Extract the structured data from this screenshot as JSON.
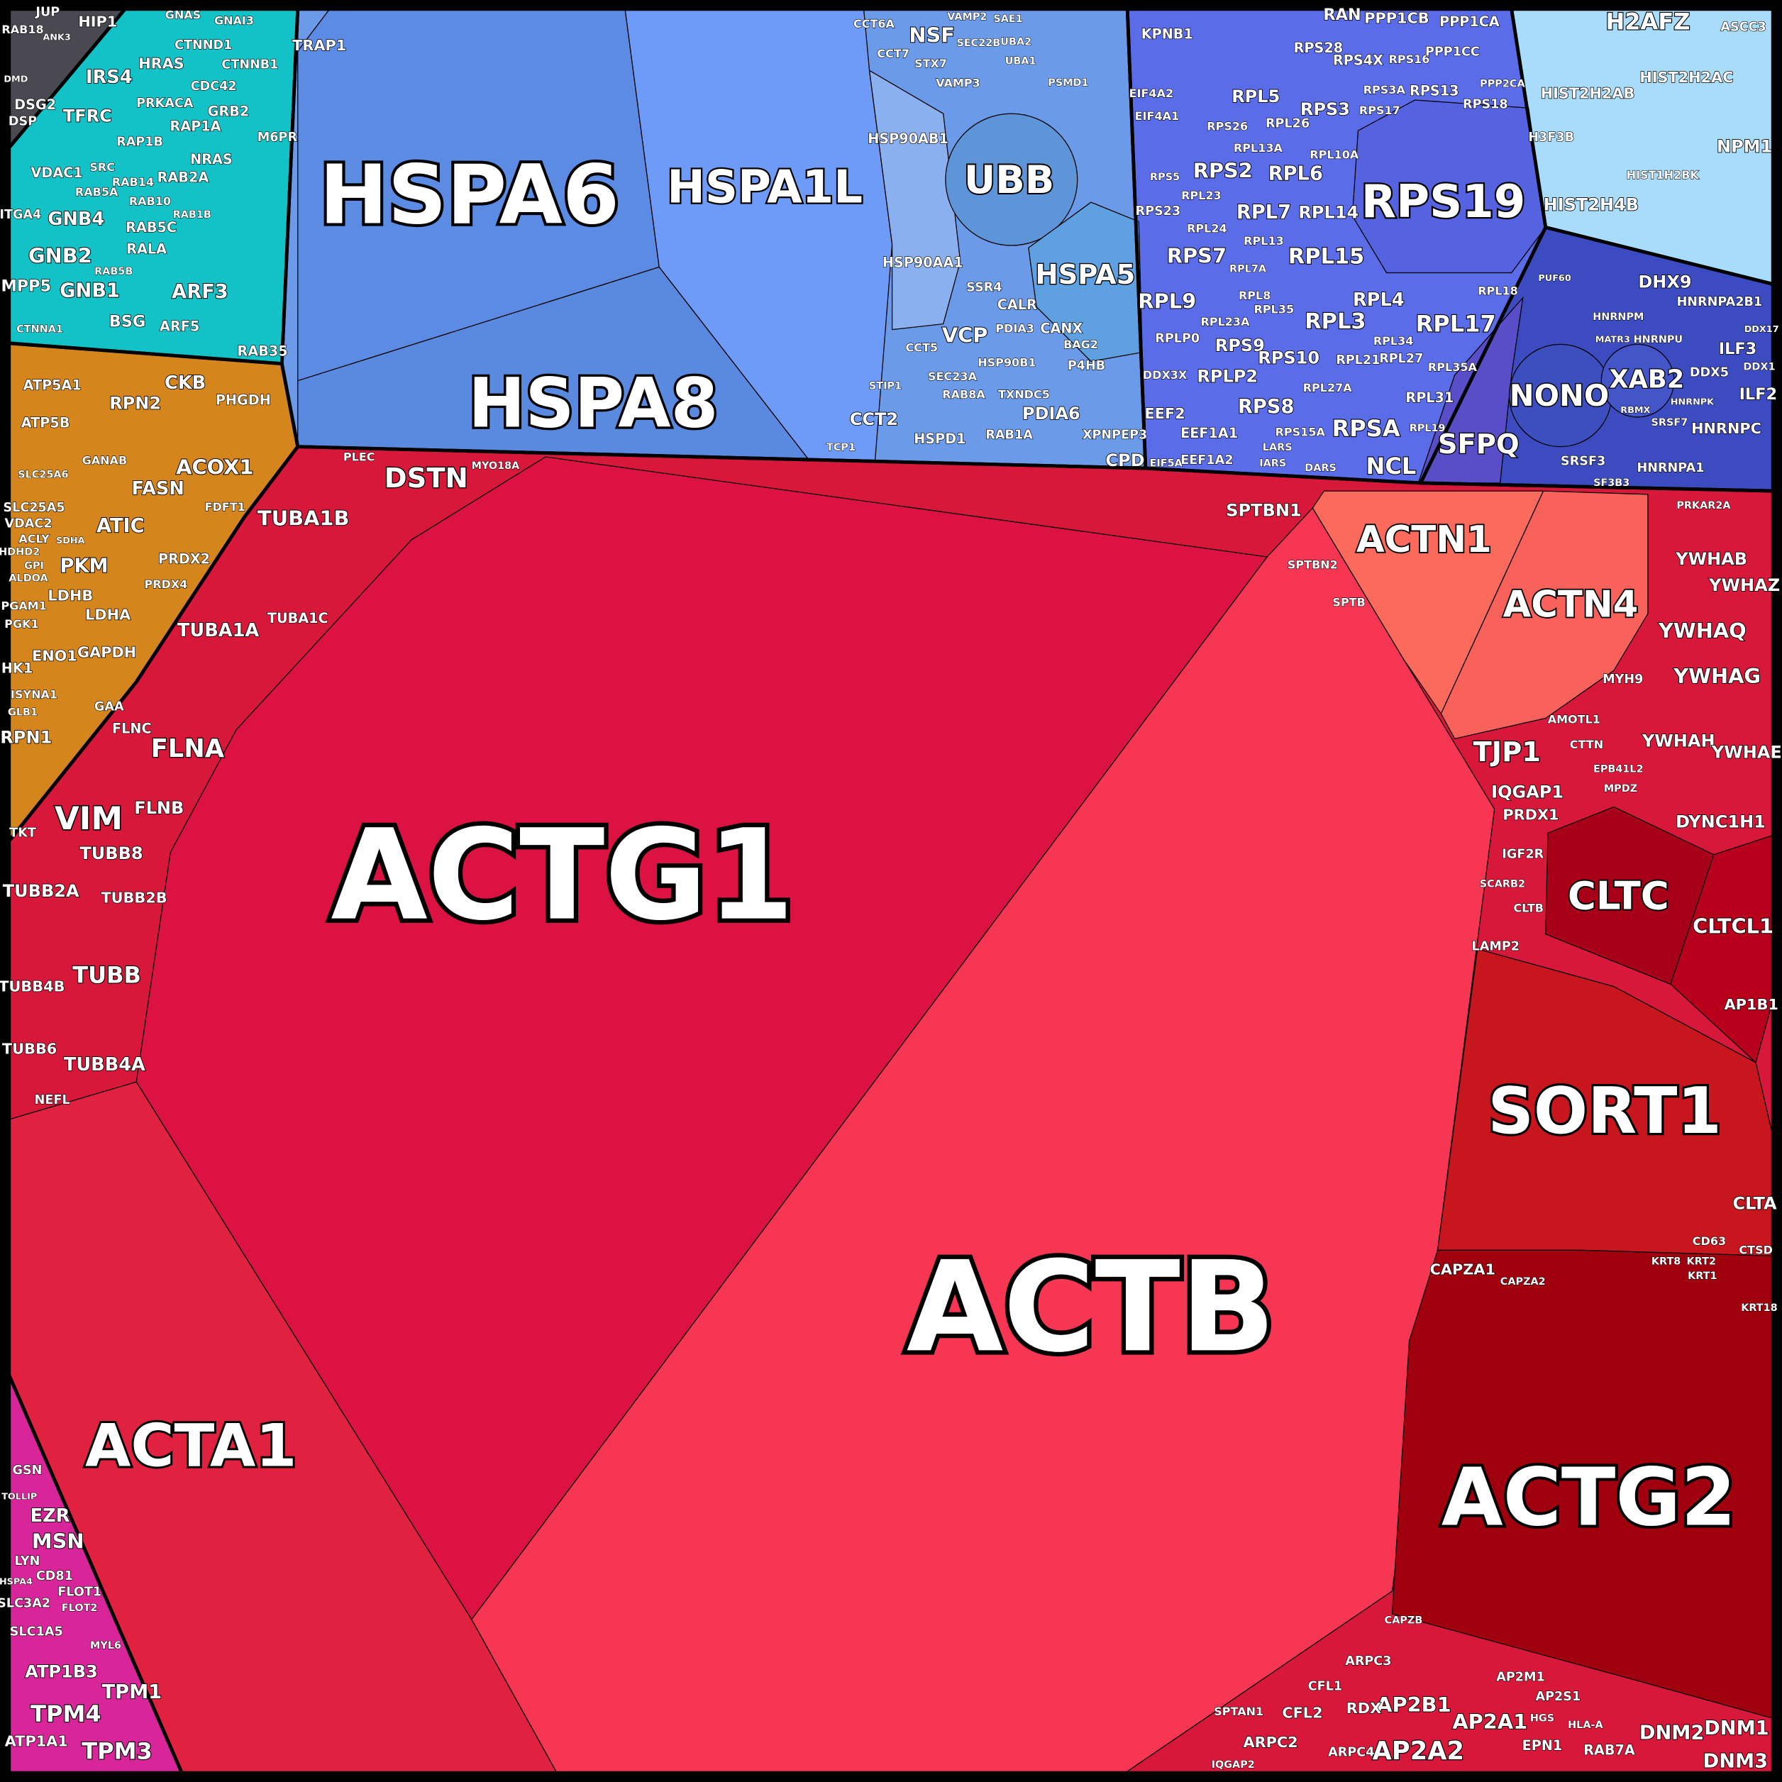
{
  "chart_data": {
    "type": "voronoi-treemap",
    "title": "",
    "groups": [
      {
        "name": "",
        "color": "#d8183a",
        "cells": [
          {
            "label": "ACTG1",
            "color": "#dc1242"
          },
          {
            "label": "ACTB",
            "color": "#f73654"
          },
          {
            "label": "ACTA1",
            "color": "#e02240"
          },
          {
            "label": "ACTG2",
            "color": "#a0000e"
          },
          {
            "label": "SORT1",
            "color": "#c8161e"
          },
          {
            "label": "CLTC",
            "color": "#a80018"
          },
          {
            "label": "CLTCL1",
            "color": "#b8001c"
          },
          {
            "label": "ACTN1",
            "color": "#fb6a5a"
          },
          {
            "label": "ACTN4",
            "color": "#f9625a"
          },
          {
            "label": "DSTN"
          },
          {
            "label": "TUBA1B"
          },
          {
            "label": "TUBA1A"
          },
          {
            "label": "TUBA1C"
          },
          {
            "label": "FLNA"
          },
          {
            "label": "FLNB"
          },
          {
            "label": "FLNC"
          },
          {
            "label": "VIM"
          },
          {
            "label": "TUBB8"
          },
          {
            "label": "TUBB2A"
          },
          {
            "label": "TUBB2B"
          },
          {
            "label": "TUBB"
          },
          {
            "label": "TUBB4B"
          },
          {
            "label": "TUBB6"
          },
          {
            "label": "TUBB4A"
          },
          {
            "label": "NEFL"
          },
          {
            "label": "SPTBN1"
          },
          {
            "label": "SPTBN2"
          },
          {
            "label": "SPTB"
          },
          {
            "label": "PLEC"
          },
          {
            "label": "MYO18A"
          },
          {
            "label": "YWHAB"
          },
          {
            "label": "YWHAZ"
          },
          {
            "label": "YWHAQ"
          },
          {
            "label": "YWHAG"
          },
          {
            "label": "YWHAH"
          },
          {
            "label": "YWHAE"
          },
          {
            "label": "TJP1"
          },
          {
            "label": "IQGAP1"
          },
          {
            "label": "PRDX1"
          },
          {
            "label": "DYNC1H1"
          },
          {
            "label": "AP1B1"
          },
          {
            "label": "CLTA"
          },
          {
            "label": "CAPZA1"
          },
          {
            "label": "CAPZA2"
          },
          {
            "label": "CAPZB"
          },
          {
            "label": "AP2B1"
          },
          {
            "label": "AP2A1"
          },
          {
            "label": "AP2A2"
          },
          {
            "label": "AP2M1"
          },
          {
            "label": "AP2S1"
          },
          {
            "label": "DNM2"
          },
          {
            "label": "DNM1"
          },
          {
            "label": "DNM3"
          },
          {
            "label": "EPN1"
          },
          {
            "label": "RAB7A"
          },
          {
            "label": "HGS"
          },
          {
            "label": "HLA-A"
          },
          {
            "label": "ARPC2"
          },
          {
            "label": "ARPC3"
          },
          {
            "label": "ARPC4"
          },
          {
            "label": "CFL1"
          },
          {
            "label": "CFL2"
          },
          {
            "label": "RDX"
          },
          {
            "label": "SPTAN1"
          },
          {
            "label": "IQGAP2"
          },
          {
            "label": "MYH9"
          },
          {
            "label": "AMOTL1"
          },
          {
            "label": "CTTN"
          },
          {
            "label": "EPB41L2"
          },
          {
            "label": "MPDZ"
          },
          {
            "label": "PRKAR2A"
          },
          {
            "label": "LAMP2"
          },
          {
            "label": "CLTB"
          },
          {
            "label": "IGF2R"
          },
          {
            "label": "SCARB2"
          },
          {
            "label": "CD63"
          },
          {
            "label": "CTSD"
          },
          {
            "label": "KRT8"
          },
          {
            "label": "KRT2"
          },
          {
            "label": "KRT1"
          },
          {
            "label": "KRT18"
          }
        ]
      },
      {
        "name": "",
        "color": "#6a9ae8",
        "cells": [
          {
            "label": "HSPA6",
            "color": "#5b8be3"
          },
          {
            "label": "HSPA1L",
            "color": "#6e9bf7"
          },
          {
            "label": "HSPA8",
            "color": "#5a8ae0"
          },
          {
            "label": "HSP90AA1",
            "color": "#8ab0f0"
          },
          {
            "label": "UBB",
            "color": "#5e94d8"
          },
          {
            "label": "HSPA5",
            "color": "#5fa0e0"
          },
          {
            "label": "HSP90AB1"
          },
          {
            "label": "TRAP1"
          },
          {
            "label": "NSF"
          },
          {
            "label": "CCT6A"
          },
          {
            "label": "CCT7"
          },
          {
            "label": "VAMP2"
          },
          {
            "label": "SAE1"
          },
          {
            "label": "UBA2"
          },
          {
            "label": "UBA1"
          },
          {
            "label": "STX7"
          },
          {
            "label": "VAMP3"
          },
          {
            "label": "SEC22B"
          },
          {
            "label": "PSMD1"
          },
          {
            "label": "VCP"
          },
          {
            "label": "CALR"
          },
          {
            "label": "CANX"
          },
          {
            "label": "PDIA3"
          },
          {
            "label": "SSR4"
          },
          {
            "label": "P4HB"
          },
          {
            "label": "BAG2"
          },
          {
            "label": "PDIA6"
          },
          {
            "label": "XPNPEP3"
          },
          {
            "label": "CPD"
          },
          {
            "label": "HSPD1"
          },
          {
            "label": "RAB1A"
          },
          {
            "label": "SEC23A"
          },
          {
            "label": "RAB8A"
          },
          {
            "label": "HSP90B1"
          },
          {
            "label": "CCT2"
          },
          {
            "label": "CCT5"
          },
          {
            "label": "STIP1"
          },
          {
            "label": "TCP1"
          },
          {
            "label": "TXNDC5"
          }
        ]
      },
      {
        "name": "",
        "color": "#5a6ce8",
        "cells": [
          {
            "label": "RPS19",
            "color": "#5563e0"
          },
          {
            "label": "SFPQ",
            "color": "#5a4ec8"
          },
          {
            "label": "RPS3"
          },
          {
            "label": "RPL6"
          },
          {
            "label": "RPS2"
          },
          {
            "label": "RPL7"
          },
          {
            "label": "RPL14"
          },
          {
            "label": "RPS7"
          },
          {
            "label": "RPL15"
          },
          {
            "label": "RPL9"
          },
          {
            "label": "RPL3"
          },
          {
            "label": "RPL4"
          },
          {
            "label": "RPL17"
          },
          {
            "label": "RPS9"
          },
          {
            "label": "RPS10"
          },
          {
            "label": "RPS8"
          },
          {
            "label": "RPSA"
          },
          {
            "label": "NCL"
          },
          {
            "label": "RPL5"
          },
          {
            "label": "RPS28"
          },
          {
            "label": "RPS4X"
          },
          {
            "label": "RPS16"
          },
          {
            "label": "RPS3A"
          },
          {
            "label": "RPS13"
          },
          {
            "label": "RPS17"
          },
          {
            "label": "RPS18"
          },
          {
            "label": "RPL26"
          },
          {
            "label": "RPL13A"
          },
          {
            "label": "RPL10A"
          },
          {
            "label": "RPS26"
          },
          {
            "label": "RPL24"
          },
          {
            "label": "RPS23"
          },
          {
            "label": "RPL23"
          },
          {
            "label": "RPL7A"
          },
          {
            "label": "RPL13"
          },
          {
            "label": "RPL23A"
          },
          {
            "label": "RPL8"
          },
          {
            "label": "RPL35"
          },
          {
            "label": "RPL34"
          },
          {
            "label": "RPL21"
          },
          {
            "label": "RPL27"
          },
          {
            "label": "RPL35A"
          },
          {
            "label": "RPLP0"
          },
          {
            "label": "RPLP2"
          },
          {
            "label": "RPL27A"
          },
          {
            "label": "RPL31"
          },
          {
            "label": "RPS15A"
          },
          {
            "label": "RPL19"
          },
          {
            "label": "RPL18"
          },
          {
            "label": "DDX3X"
          },
          {
            "label": "EEF2"
          },
          {
            "label": "EEF1A1"
          },
          {
            "label": "EEF1A2"
          },
          {
            "label": "EIF4A2"
          },
          {
            "label": "EIF4A1"
          },
          {
            "label": "KPNB1"
          },
          {
            "label": "RAN"
          },
          {
            "label": "PPP1CB"
          },
          {
            "label": "PPP1CA"
          },
          {
            "label": "PPP1CC"
          },
          {
            "label": "PPP2CA"
          },
          {
            "label": "RPS5"
          },
          {
            "label": "LARS"
          },
          {
            "label": "IARS"
          },
          {
            "label": "EIF5A"
          },
          {
            "label": "DARS"
          }
        ]
      },
      {
        "name": "",
        "color": "#a8dcfa",
        "cells": [
          {
            "label": "H2AFZ"
          },
          {
            "label": "HIST2H2AB"
          },
          {
            "label": "HIST2H2AC"
          },
          {
            "label": "HIST2H4B"
          },
          {
            "label": "HIST1H2BK"
          },
          {
            "label": "NPM1"
          },
          {
            "label": "ASCC3"
          },
          {
            "label": "H3F3B"
          }
        ]
      },
      {
        "name": "",
        "color": "#3c4cc0",
        "cells": [
          {
            "label": "NONO",
            "color": "#3d4fbf"
          },
          {
            "label": "XAB2",
            "color": "#4455c8"
          },
          {
            "label": "DHX9"
          },
          {
            "label": "HNRNPA2B1"
          },
          {
            "label": "ILF3"
          },
          {
            "label": "ILF2"
          },
          {
            "label": "DDX5"
          },
          {
            "label": "HNRNPC"
          },
          {
            "label": "HNRNPA1"
          },
          {
            "label": "SRSF3"
          },
          {
            "label": "SRSF7"
          },
          {
            "label": "HNRNPM"
          },
          {
            "label": "MATR3"
          },
          {
            "label": "HNRNPU"
          },
          {
            "label": "DDX17"
          },
          {
            "label": "DDX1"
          },
          {
            "label": "PUF60"
          },
          {
            "label": "SF3B3"
          },
          {
            "label": "HNRNPK"
          },
          {
            "label": "RBMX"
          }
        ]
      },
      {
        "name": "",
        "color": "#12c2c6",
        "cells": [
          {
            "label": "IRS4"
          },
          {
            "label": "TFRC"
          },
          {
            "label": "VDAC1"
          },
          {
            "label": "ITGA4"
          },
          {
            "label": "GNB4"
          },
          {
            "label": "GNB2"
          },
          {
            "label": "GNB1"
          },
          {
            "label": "MPP5"
          },
          {
            "label": "BSG"
          },
          {
            "label": "ARF3"
          },
          {
            "label": "ARF5"
          },
          {
            "label": "RAB35"
          },
          {
            "label": "HRAS"
          },
          {
            "label": "RAP1A"
          },
          {
            "label": "RAP1B"
          },
          {
            "label": "PRKACA"
          },
          {
            "label": "RAB2A"
          },
          {
            "label": "RAB5C"
          },
          {
            "label": "RALA"
          },
          {
            "label": "NRAS"
          },
          {
            "label": "CTNNB1"
          },
          {
            "label": "CTNND1"
          },
          {
            "label": "GNAS"
          },
          {
            "label": "GNAI3"
          },
          {
            "label": "CDC42"
          },
          {
            "label": "GRB2"
          },
          {
            "label": "M6PR"
          },
          {
            "label": "RAB14"
          },
          {
            "label": "RAB5A"
          },
          {
            "label": "RAB10"
          },
          {
            "label": "RAB1B"
          },
          {
            "label": "SRC"
          },
          {
            "label": "RAB5B"
          },
          {
            "label": "CTNNA1"
          }
        ]
      },
      {
        "name": "",
        "color": "#4a4850",
        "cells": [
          {
            "label": "JUP"
          },
          {
            "label": "HIP1"
          },
          {
            "label": "RAB18"
          },
          {
            "label": "ANK3"
          },
          {
            "label": "DSG2"
          },
          {
            "label": "DSP"
          },
          {
            "label": "DMD"
          }
        ]
      },
      {
        "name": "",
        "color": "#d4861c",
        "cells": [
          {
            "label": "ATP5A1"
          },
          {
            "label": "ATP5B"
          },
          {
            "label": "CKB"
          },
          {
            "label": "RPN2"
          },
          {
            "label": "PHGDH"
          },
          {
            "label": "ACOX1"
          },
          {
            "label": "FASN"
          },
          {
            "label": "ATIC"
          },
          {
            "label": "GANAB"
          },
          {
            "label": "FDFT1"
          },
          {
            "label": "SLC25A5"
          },
          {
            "label": "SLC25A6"
          },
          {
            "label": "VDAC2"
          },
          {
            "label": "PKM"
          },
          {
            "label": "PRDX2"
          },
          {
            "label": "PRDX4"
          },
          {
            "label": "LDHB"
          },
          {
            "label": "LDHA"
          },
          {
            "label": "ENO1"
          },
          {
            "label": "GAPDH"
          },
          {
            "label": "PGAM1"
          },
          {
            "label": "PGK1"
          },
          {
            "label": "HK1"
          },
          {
            "label": "GAA"
          },
          {
            "label": "RPN1"
          },
          {
            "label": "TKT"
          },
          {
            "label": "ACLY"
          },
          {
            "label": "HDHD2"
          },
          {
            "label": "SDHA"
          },
          {
            "label": "GPI"
          },
          {
            "label": "ALDOA"
          },
          {
            "label": "ISYNA1"
          },
          {
            "label": "GLB1"
          }
        ]
      },
      {
        "name": "",
        "color": "#d8269a",
        "cells": [
          {
            "label": "GSN"
          },
          {
            "label": "EZR"
          },
          {
            "label": "MSN"
          },
          {
            "label": "LYN"
          },
          {
            "label": "CD81"
          },
          {
            "label": "FLOT1"
          },
          {
            "label": "FLOT2"
          },
          {
            "label": "HSPA4"
          },
          {
            "label": "SLC3A2"
          },
          {
            "label": "SLC1A5"
          },
          {
            "label": "ATP1B3"
          },
          {
            "label": "TPM4"
          },
          {
            "label": "TPM1"
          },
          {
            "label": "TPM3"
          },
          {
            "label": "ATP1A1"
          },
          {
            "label": "MYL6"
          },
          {
            "label": "TOLLIP"
          }
        ]
      }
    ]
  }
}
